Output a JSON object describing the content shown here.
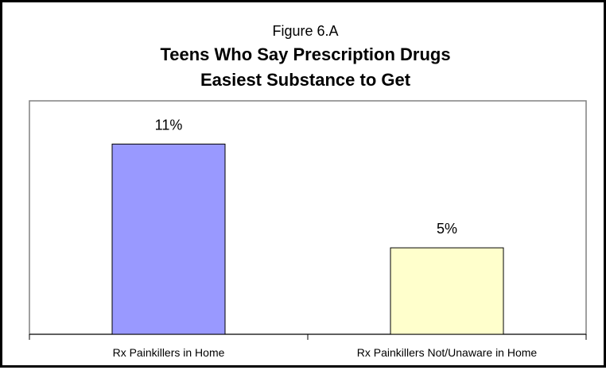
{
  "figure": {
    "label": "Figure 6.A",
    "title_lines": [
      "Teens Who Say Prescription Drugs",
      "Easiest Substance to Get"
    ]
  },
  "chart_data": {
    "type": "bar",
    "title": "Teens Who Say Prescription Drugs Easiest Substance to Get",
    "categories": [
      "Rx Painkillers in Home",
      "Rx Painkillers Not/Unaware in Home"
    ],
    "values": [
      11,
      5
    ],
    "data_labels": [
      "11%",
      "5%"
    ],
    "unit": "%",
    "ylim": [
      0,
      13.5
    ],
    "grid": false,
    "legend": "none",
    "bar_colors": [
      "#9999ff",
      "#ffffcc"
    ],
    "bar_edge_color": "#000000",
    "plot_border_color": "#808080"
  }
}
